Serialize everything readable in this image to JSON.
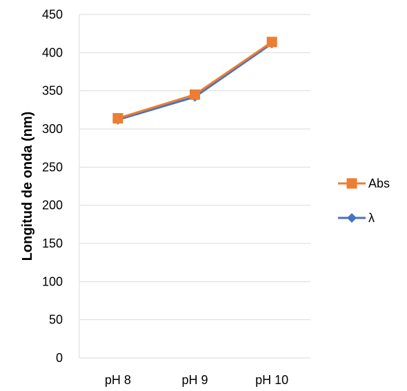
{
  "chart_data": {
    "type": "line",
    "title": "",
    "xlabel": "",
    "ylabel": "Longitud de onda (nm)",
    "categories": [
      "pH 8",
      "pH 9",
      "pH 10"
    ],
    "ylim": [
      0,
      450
    ],
    "yticks": [
      0,
      50,
      100,
      150,
      200,
      250,
      300,
      350,
      400,
      450
    ],
    "grid": true,
    "legend_position": "right",
    "series": [
      {
        "name": "λ",
        "values": [
          312,
          342,
          412
        ],
        "color": "#4472C4",
        "marker": "diamond"
      },
      {
        "name": "Abs",
        "values": [
          314,
          345,
          414
        ],
        "color": "#ED7D31",
        "marker": "square"
      }
    ],
    "legend": [
      {
        "name": "Abs",
        "color": "#ED7D31",
        "marker": "square"
      },
      {
        "name": "λ",
        "color": "#4472C4",
        "marker": "diamond"
      }
    ]
  }
}
